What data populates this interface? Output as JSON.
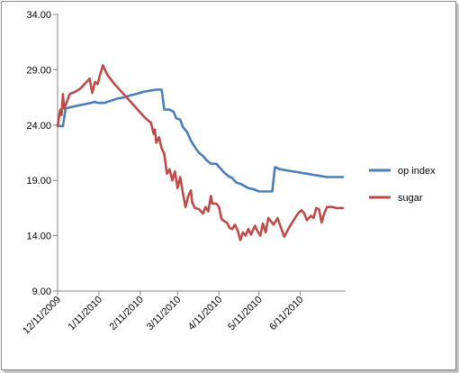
{
  "chart_data": {
    "type": "line",
    "title": "",
    "xlabel": "",
    "ylabel": "",
    "ylim": [
      9,
      34
    ],
    "yticks": [
      9,
      14,
      19,
      24,
      29,
      34
    ],
    "ytick_labels": [
      "9.00",
      "14.00",
      "19.00",
      "24.00",
      "29.00",
      "34.00"
    ],
    "xlim": [
      "2009-12-11",
      "2010-07-15"
    ],
    "xticks": [
      "2009-12-11",
      "2010-01-11",
      "2010-02-11",
      "2010-03-11",
      "2010-04-11",
      "2010-05-11",
      "2010-06-11"
    ],
    "xtick_labels": [
      "12/11/2009",
      "1/11/2010",
      "2/11/2010",
      "3/11/2010",
      "4/11/2010",
      "5/11/2010",
      "6/11/2010"
    ],
    "grid": false,
    "legend_position": "right",
    "series": [
      {
        "name": "op index",
        "color": "#4a7ebb",
        "points": [
          [
            "2009-12-11",
            24.0
          ],
          [
            "2009-12-13",
            23.9
          ],
          [
            "2009-12-15",
            23.9
          ],
          [
            "2009-12-17",
            25.5
          ],
          [
            "2009-12-20",
            25.6
          ],
          [
            "2009-12-24",
            25.7
          ],
          [
            "2009-12-28",
            25.8
          ],
          [
            "2010-01-01",
            25.9
          ],
          [
            "2010-01-05",
            26.0
          ],
          [
            "2010-01-08",
            26.1
          ],
          [
            "2010-01-10",
            26.0
          ],
          [
            "2010-01-15",
            26.0
          ],
          [
            "2010-01-20",
            26.2
          ],
          [
            "2010-01-25",
            26.4
          ],
          [
            "2010-01-30",
            26.5
          ],
          [
            "2010-02-04",
            26.7
          ],
          [
            "2010-02-08",
            26.8
          ],
          [
            "2010-02-13",
            27.0
          ],
          [
            "2010-02-18",
            27.1
          ],
          [
            "2010-02-23",
            27.2
          ],
          [
            "2010-02-27",
            27.2
          ],
          [
            "2010-03-01",
            25.4
          ],
          [
            "2010-03-05",
            25.4
          ],
          [
            "2010-03-08",
            25.2
          ],
          [
            "2010-03-10",
            24.6
          ],
          [
            "2010-03-13",
            24.5
          ],
          [
            "2010-03-15",
            23.8
          ],
          [
            "2010-03-18",
            23.4
          ],
          [
            "2010-03-21",
            22.6
          ],
          [
            "2010-03-24",
            22.0
          ],
          [
            "2010-03-27",
            21.5
          ],
          [
            "2010-03-30",
            21.2
          ],
          [
            "2010-04-02",
            20.8
          ],
          [
            "2010-04-05",
            20.5
          ],
          [
            "2010-04-09",
            20.5
          ],
          [
            "2010-04-12",
            20.1
          ],
          [
            "2010-04-15",
            19.7
          ],
          [
            "2010-04-18",
            19.4
          ],
          [
            "2010-04-21",
            19.2
          ],
          [
            "2010-04-24",
            18.8
          ],
          [
            "2010-04-27",
            18.7
          ],
          [
            "2010-04-30",
            18.5
          ],
          [
            "2010-05-03",
            18.3
          ],
          [
            "2010-05-07",
            18.2
          ],
          [
            "2010-05-11",
            18.0
          ],
          [
            "2010-05-15",
            18.0
          ],
          [
            "2010-05-19",
            18.0
          ],
          [
            "2010-05-21",
            18.0
          ],
          [
            "2010-05-23",
            20.2
          ],
          [
            "2010-05-27",
            20.0
          ],
          [
            "2010-06-01",
            19.9
          ],
          [
            "2010-06-06",
            19.8
          ],
          [
            "2010-06-11",
            19.7
          ],
          [
            "2010-06-16",
            19.6
          ],
          [
            "2010-06-21",
            19.5
          ],
          [
            "2010-06-26",
            19.4
          ],
          [
            "2010-07-01",
            19.3
          ],
          [
            "2010-07-06",
            19.3
          ],
          [
            "2010-07-13",
            19.3
          ]
        ]
      },
      {
        "name": "sugar",
        "color": "#be4b48",
        "points": [
          [
            "2009-12-11",
            23.9
          ],
          [
            "2009-12-13",
            25.4
          ],
          [
            "2009-12-14",
            24.9
          ],
          [
            "2009-12-15",
            26.8
          ],
          [
            "2009-12-16",
            25.5
          ],
          [
            "2009-12-18",
            26.1
          ],
          [
            "2009-12-20",
            26.8
          ],
          [
            "2009-12-24",
            27.0
          ],
          [
            "2009-12-28",
            27.3
          ],
          [
            "2010-01-01",
            27.8
          ],
          [
            "2010-01-04",
            28.2
          ],
          [
            "2010-01-06",
            26.9
          ],
          [
            "2010-01-08",
            27.9
          ],
          [
            "2010-01-10",
            27.7
          ],
          [
            "2010-01-12",
            28.6
          ],
          [
            "2010-01-14",
            29.4
          ],
          [
            "2010-01-17",
            28.6
          ],
          [
            "2010-01-22",
            27.8
          ],
          [
            "2010-01-28",
            27.0
          ],
          [
            "2010-02-03",
            26.2
          ],
          [
            "2010-02-09",
            25.4
          ],
          [
            "2010-02-15",
            24.6
          ],
          [
            "2010-02-19",
            24.2
          ],
          [
            "2010-02-21",
            23.2
          ],
          [
            "2010-02-22",
            23.6
          ],
          [
            "2010-02-23",
            22.4
          ],
          [
            "2010-02-25",
            22.9
          ],
          [
            "2010-02-27",
            21.9
          ],
          [
            "2010-03-01",
            21.4
          ],
          [
            "2010-03-03",
            19.6
          ],
          [
            "2010-03-05",
            20.0
          ],
          [
            "2010-03-07",
            19.0
          ],
          [
            "2010-03-09",
            19.8
          ],
          [
            "2010-03-11",
            18.3
          ],
          [
            "2010-03-13",
            19.3
          ],
          [
            "2010-03-15",
            17.8
          ],
          [
            "2010-03-17",
            16.6
          ],
          [
            "2010-03-19",
            17.6
          ],
          [
            "2010-03-21",
            18.1
          ],
          [
            "2010-03-22",
            17.0
          ],
          [
            "2010-03-24",
            16.5
          ],
          [
            "2010-03-27",
            16.4
          ],
          [
            "2010-03-30",
            16.0
          ],
          [
            "2010-04-01",
            16.6
          ],
          [
            "2010-04-03",
            16.2
          ],
          [
            "2010-04-05",
            17.6
          ],
          [
            "2010-04-06",
            16.9
          ],
          [
            "2010-04-09",
            16.9
          ],
          [
            "2010-04-11",
            16.6
          ],
          [
            "2010-04-13",
            15.5
          ],
          [
            "2010-04-15",
            15.3
          ],
          [
            "2010-04-17",
            15.2
          ],
          [
            "2010-04-19",
            14.7
          ],
          [
            "2010-04-21",
            14.6
          ],
          [
            "2010-04-23",
            15.0
          ],
          [
            "2010-04-25",
            14.5
          ],
          [
            "2010-04-27",
            13.6
          ],
          [
            "2010-04-29",
            14.3
          ],
          [
            "2010-05-01",
            14.0
          ],
          [
            "2010-05-03",
            14.6
          ],
          [
            "2010-05-05",
            14.1
          ],
          [
            "2010-05-08",
            14.9
          ],
          [
            "2010-05-10",
            14.4
          ],
          [
            "2010-05-12",
            14.0
          ],
          [
            "2010-05-14",
            15.1
          ],
          [
            "2010-05-16",
            14.3
          ],
          [
            "2010-05-18",
            15.6
          ],
          [
            "2010-05-20",
            15.3
          ],
          [
            "2010-05-22",
            15.0
          ],
          [
            "2010-05-25",
            15.6
          ],
          [
            "2010-05-27",
            14.9
          ],
          [
            "2010-05-30",
            13.9
          ],
          [
            "2010-06-02",
            14.6
          ],
          [
            "2010-06-05",
            15.2
          ],
          [
            "2010-06-07",
            15.6
          ],
          [
            "2010-06-10",
            16.1
          ],
          [
            "2010-06-12",
            16.3
          ],
          [
            "2010-06-14",
            16.0
          ],
          [
            "2010-06-16",
            15.4
          ],
          [
            "2010-06-19",
            15.8
          ],
          [
            "2010-06-21",
            15.6
          ],
          [
            "2010-06-23",
            16.5
          ],
          [
            "2010-06-25",
            16.4
          ],
          [
            "2010-06-27",
            15.2
          ],
          [
            "2010-06-29",
            16.0
          ],
          [
            "2010-07-01",
            16.6
          ],
          [
            "2010-07-05",
            16.6
          ],
          [
            "2010-07-08",
            16.5
          ],
          [
            "2010-07-13",
            16.5
          ]
        ]
      }
    ]
  }
}
